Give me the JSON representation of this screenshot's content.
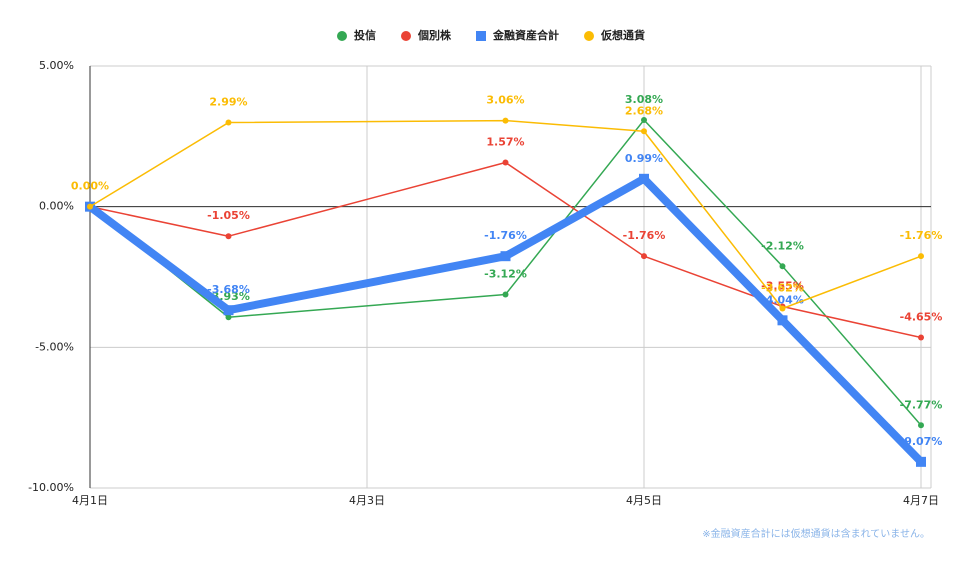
{
  "chart_data": {
    "type": "line",
    "x": [
      1,
      2,
      4,
      5,
      6,
      7
    ],
    "xlim": [
      1,
      7
    ],
    "xticks": [
      {
        "value": 1,
        "label": "4月1日"
      },
      {
        "value": 3,
        "label": "4月3日"
      },
      {
        "value": 5,
        "label": "4月5日"
      },
      {
        "value": 7,
        "label": "4月7日"
      }
    ],
    "ylim": [
      -10,
      5
    ],
    "yticks": [
      {
        "value": -10,
        "label": "-10.00%"
      },
      {
        "value": -5,
        "label": "-5.00%"
      },
      {
        "value": 0,
        "label": "0.00%"
      },
      {
        "value": 5,
        "label": "5.00%"
      }
    ],
    "grid": true,
    "legend": "top",
    "series": [
      {
        "name": "投信",
        "color": "#34a853",
        "marker": "circle",
        "width": 1.5,
        "values": [
          0,
          -3.93,
          -3.12,
          3.08,
          -2.12,
          -7.77
        ],
        "value_labels": [
          null,
          "-3.93%",
          "-3.12%",
          "3.08%",
          "-2.12%",
          "-7.77%"
        ]
      },
      {
        "name": "個別株",
        "color": "#ea4335",
        "marker": "circle",
        "width": 1.5,
        "values": [
          0,
          -1.05,
          1.57,
          -1.76,
          -3.55,
          -4.65
        ],
        "value_labels": [
          null,
          "-1.05%",
          "1.57%",
          "-1.76%",
          "-3.55%",
          "-4.65%"
        ]
      },
      {
        "name": "金融資産合計",
        "color": "#4285f4",
        "marker": "square",
        "width": 8,
        "values": [
          0,
          -3.68,
          -1.76,
          0.99,
          -4.04,
          -9.07
        ],
        "value_labels": [
          null,
          "-3.68%",
          "-1.76%",
          "0.99%",
          "-4.04%",
          "-9.07%"
        ]
      },
      {
        "name": "仮想通貨",
        "color": "#fbbc04",
        "marker": "circle",
        "width": 1.5,
        "values": [
          0,
          2.99,
          3.06,
          2.68,
          -3.62,
          -1.76
        ],
        "value_labels": [
          "0.00%",
          "2.99%",
          "3.06%",
          "2.68%",
          "-3.62%",
          "-1.76%"
        ]
      }
    ],
    "note": "※金融資産合計には仮想通貨は含まれていません。"
  }
}
